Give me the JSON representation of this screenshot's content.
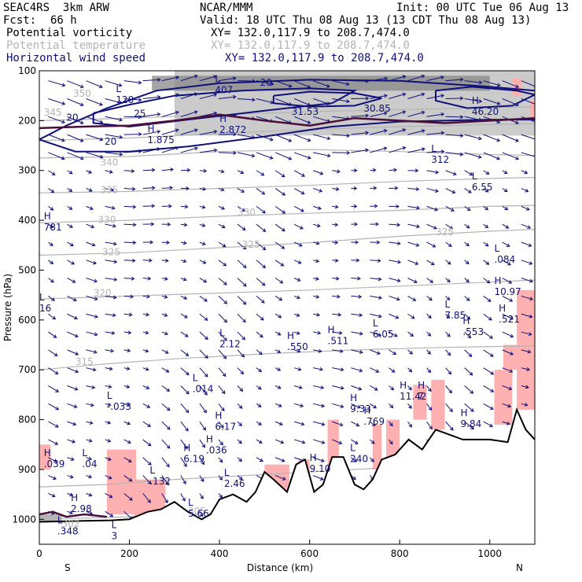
{
  "header": {
    "model": "SEAC4RS  3km ARW",
    "org": "NCAR/MMM",
    "init": "Init: 00 UTC Tue 06 Aug 13",
    "fcst_label": "Fcst:",
    "fcst_value": "66 h",
    "valid": "Valid: 18 UTC Thu 08 Aug 13 (13 CDT Thu 08 Aug 13)",
    "fields": [
      {
        "name": "Potential vorticity",
        "xs": "XY= 132.0,117.9 to 208.7,474.0",
        "color": "#000000"
      },
      {
        "name": "Potential temperature",
        "xs": "XY= 132.0,117.9 to 208.7,474.0",
        "color": "#b4b4b4"
      },
      {
        "name": "Horizontal wind speed",
        "xs": "XY= 132.0,117.9 to 208.7,474.0",
        "color": "#10107a"
      }
    ]
  },
  "chart_data": {
    "type": "cross-section",
    "xlabel": "Distance (km)",
    "ylabel": "Pressure (hPa)",
    "xlim": [
      0,
      1100
    ],
    "ylim": [
      1050,
      100
    ],
    "xticks": [
      0,
      200,
      400,
      600,
      800,
      1000
    ],
    "yticks": [
      100,
      200,
      300,
      400,
      500,
      600,
      700,
      800,
      900,
      1000
    ],
    "end_labels": {
      "left": "S",
      "right": "N"
    },
    "terrain_pressure": [
      [
        0,
        1005
      ],
      [
        100,
        1003
      ],
      [
        160,
        1002
      ],
      [
        200,
        1000
      ],
      [
        240,
        985
      ],
      [
        270,
        980
      ],
      [
        300,
        965
      ],
      [
        330,
        985
      ],
      [
        360,
        1000
      ],
      [
        380,
        990
      ],
      [
        400,
        960
      ],
      [
        430,
        950
      ],
      [
        460,
        965
      ],
      [
        480,
        945
      ],
      [
        500,
        905
      ],
      [
        520,
        920
      ],
      [
        550,
        945
      ],
      [
        570,
        890
      ],
      [
        590,
        880
      ],
      [
        610,
        945
      ],
      [
        630,
        930
      ],
      [
        650,
        875
      ],
      [
        675,
        875
      ],
      [
        700,
        930
      ],
      [
        720,
        940
      ],
      [
        740,
        920
      ],
      [
        760,
        880
      ],
      [
        790,
        870
      ],
      [
        820,
        840
      ],
      [
        850,
        860
      ],
      [
        880,
        820
      ],
      [
        910,
        830
      ],
      [
        940,
        840
      ],
      [
        960,
        840
      ],
      [
        1000,
        840
      ],
      [
        1040,
        845
      ],
      [
        1060,
        780
      ],
      [
        1080,
        820
      ],
      [
        1100,
        840
      ]
    ],
    "theta_contours": [
      {
        "value": 350,
        "p": [
          [
            0,
            200
          ],
          [
            200,
            195
          ],
          [
            400,
            188
          ],
          [
            600,
            182
          ],
          [
            800,
            178
          ],
          [
            1000,
            174
          ],
          [
            1100,
            172
          ]
        ]
      },
      {
        "value": 345,
        "p": [
          [
            0,
            240
          ],
          [
            200,
            235
          ],
          [
            400,
            226
          ],
          [
            600,
            218
          ],
          [
            800,
            212
          ],
          [
            1000,
            208
          ],
          [
            1100,
            206
          ]
        ]
      },
      {
        "value": 340,
        "p": [
          [
            0,
            275
          ],
          [
            200,
            272
          ],
          [
            400,
            262
          ],
          [
            600,
            258
          ],
          [
            800,
            262
          ],
          [
            1000,
            268
          ],
          [
            1100,
            270
          ]
        ]
      },
      {
        "value": 335,
        "p": [
          [
            0,
            345
          ],
          [
            200,
            342
          ],
          [
            400,
            336
          ],
          [
            600,
            330
          ],
          [
            800,
            322
          ],
          [
            1000,
            316
          ],
          [
            1100,
            314
          ]
        ]
      },
      {
        "value": 330,
        "p": [
          [
            0,
            405
          ],
          [
            200,
            400
          ],
          [
            400,
            392
          ],
          [
            600,
            386
          ],
          [
            800,
            380
          ],
          [
            1000,
            372
          ],
          [
            1100,
            370
          ]
        ]
      },
      {
        "value": 325,
        "p": [
          [
            0,
            470
          ],
          [
            200,
            465
          ],
          [
            400,
            455
          ],
          [
            600,
            445
          ],
          [
            800,
            432
          ],
          [
            1000,
            422
          ],
          [
            1100,
            418
          ]
        ]
      },
      {
        "value": 320,
        "p": [
          [
            0,
            558
          ],
          [
            200,
            552
          ],
          [
            400,
            546
          ],
          [
            600,
            540
          ],
          [
            800,
            532
          ],
          [
            1000,
            524
          ],
          [
            1100,
            520
          ]
        ]
      },
      {
        "value": 315,
        "p": [
          [
            0,
            700
          ],
          [
            150,
            688
          ],
          [
            300,
            678
          ],
          [
            500,
            668
          ],
          [
            700,
            660
          ],
          [
            900,
            655
          ],
          [
            1100,
            652
          ]
        ]
      },
      {
        "value": 310,
        "p": [
          [
            0,
            935
          ],
          [
            150,
            930
          ],
          [
            300,
            920
          ],
          [
            500,
            910
          ],
          [
            700,
            900
          ],
          [
            900,
            890
          ],
          [
            1100,
            885
          ]
        ]
      },
      {
        "value": 305,
        "p": [
          [
            0,
            1000
          ],
          [
            200,
            995
          ],
          [
            350,
            990
          ]
        ]
      }
    ],
    "theta_labels": [
      {
        "value": 350,
        "x": 75,
        "p": 152
      },
      {
        "value": 345,
        "x": 10,
        "p": 190
      },
      {
        "value": 340,
        "x": 135,
        "p": 290
      },
      {
        "value": 335,
        "x": 135,
        "p": 345
      },
      {
        "value": 330,
        "x": 130,
        "p": 405
      },
      {
        "value": 330,
        "x": 440,
        "p": 390
      },
      {
        "value": 325,
        "x": 140,
        "p": 470
      },
      {
        "value": 325,
        "x": 450,
        "p": 455
      },
      {
        "value": 325,
        "x": 880,
        "p": 430
      },
      {
        "value": 320,
        "x": 120,
        "p": 552
      },
      {
        "value": 315,
        "x": 80,
        "p": 690
      },
      {
        "value": 302,
        "x": 50,
        "p": 1015
      },
      {
        "value": 305,
        "x": 330,
        "p": 990
      }
    ],
    "wind_speed_contours": [
      {
        "value": 20,
        "p": [
          [
            0,
            238
          ],
          [
            60,
            210
          ],
          [
            150,
            175
          ],
          [
            260,
            140
          ],
          [
            400,
            125
          ],
          [
            600,
            118
          ],
          [
            800,
            120
          ],
          [
            1000,
            132
          ],
          [
            1100,
            140
          ]
        ]
      },
      {
        "value": 20,
        "p": [
          [
            0,
            238
          ],
          [
            80,
            262
          ],
          [
            200,
            262
          ],
          [
            330,
            252
          ],
          [
            500,
            232
          ],
          [
            650,
            212
          ],
          [
            800,
            202
          ],
          [
            1000,
            198
          ],
          [
            1100,
            198
          ]
        ]
      },
      {
        "value": 25,
        "p": [
          [
            120,
            185
          ],
          [
            200,
            168
          ],
          [
            300,
            150
          ],
          [
            450,
            140
          ],
          [
            600,
            135
          ],
          [
            700,
            140
          ],
          [
            650,
            165
          ],
          [
            500,
            180
          ],
          [
            330,
            198
          ],
          [
            200,
            212
          ],
          [
            120,
            205
          ],
          [
            120,
            185
          ]
        ]
      },
      {
        "value": 30,
        "p": [
          [
            520,
            150
          ],
          [
            600,
            142
          ],
          [
            700,
            145
          ],
          [
            760,
            155
          ],
          [
            700,
            170
          ],
          [
            600,
            172
          ],
          [
            520,
            165
          ],
          [
            520,
            150
          ]
        ]
      },
      {
        "value": 25,
        "p": [
          [
            880,
            140
          ],
          [
            960,
            132
          ],
          [
            1060,
            140
          ],
          [
            1100,
            148
          ],
          [
            1050,
            170
          ],
          [
            950,
            175
          ],
          [
            880,
            160
          ],
          [
            880,
            140
          ]
        ]
      }
    ],
    "wind_speed_labels": [
      {
        "value": "20",
        "x": 60,
        "p": 200
      },
      {
        "value": "25",
        "x": 210,
        "p": 192
      },
      {
        "value": "20",
        "x": 145,
        "p": 248
      },
      {
        "value": "30.85",
        "x": 720,
        "p": 182
      },
      {
        "value": "31.53",
        "x": 560,
        "p": 188
      },
      {
        "value": "20",
        "x": 490,
        "p": 130
      }
    ],
    "wind_speed_extrema": [
      {
        "type": "H",
        "value": "1.875",
        "x": 240,
        "p": 245
      },
      {
        "type": "H",
        "value": "2.872",
        "x": 400,
        "p": 225
      },
      {
        "type": "L",
        "value": "120",
        "x": 170,
        "p": 165
      },
      {
        "type": "L",
        "value": "407",
        "x": 390,
        "p": 145
      },
      {
        "type": "H",
        "value": "46.20",
        "x": 960,
        "p": 188
      },
      {
        "type": "L",
        "value": "312",
        "x": 870,
        "p": 285
      },
      {
        "type": "L",
        "value": "6.55",
        "x": 960,
        "p": 340
      },
      {
        "type": "H",
        "value": "781",
        "x": 10,
        "p": 420
      },
      {
        "type": "L",
        "value": ".084",
        "x": 1010,
        "p": 485
      },
      {
        "type": "H",
        "value": "10.97",
        "x": 1010,
        "p": 550
      },
      {
        "type": "L",
        "value": "7.85",
        "x": 900,
        "p": 597
      },
      {
        "type": "H",
        "value": ".521",
        "x": 1020,
        "p": 605
      },
      {
        "type": "L",
        "value": "6.05",
        "x": 740,
        "p": 635
      },
      {
        "type": "H",
        "value": ".553",
        "x": 940,
        "p": 630
      },
      {
        "type": "L",
        "value": "2.12",
        "x": 400,
        "p": 655
      },
      {
        "type": "H",
        "value": ".550",
        "x": 550,
        "p": 660
      },
      {
        "type": "H",
        "value": ".511",
        "x": 640,
        "p": 648
      },
      {
        "type": "L",
        "value": "16",
        "x": 0,
        "p": 583
      },
      {
        "type": "L",
        "value": ".014",
        "x": 340,
        "p": 745
      },
      {
        "type": "H",
        "value": "11.42",
        "x": 800,
        "p": 760
      },
      {
        "type": "H",
        "value": "7",
        "x": 840,
        "p": 760
      },
      {
        "type": "L",
        "value": "-.033",
        "x": 150,
        "p": 780
      },
      {
        "type": "H",
        "value": "9.33",
        "x": 690,
        "p": 785
      },
      {
        "type": "H",
        "value": ".769",
        "x": 720,
        "p": 810
      },
      {
        "type": "H",
        "value": "6.17",
        "x": 390,
        "p": 820
      },
      {
        "type": "H",
        "value": "9.84",
        "x": 935,
        "p": 815
      },
      {
        "type": "H",
        "value": ".036",
        "x": 370,
        "p": 868
      },
      {
        "type": "L",
        "value": ".04",
        "x": 95,
        "p": 895
      },
      {
        "type": "H",
        "value": "6.19",
        "x": 320,
        "p": 885
      },
      {
        "type": "H",
        "value": ".039",
        "x": 10,
        "p": 895
      },
      {
        "type": "L",
        "value": ".132",
        "x": 245,
        "p": 930
      },
      {
        "type": "L",
        "value": "2.46",
        "x": 410,
        "p": 935
      },
      {
        "type": "H",
        "value": "9.10",
        "x": 600,
        "p": 905
      },
      {
        "type": "L",
        "value": "240",
        "x": 690,
        "p": 885
      },
      {
        "type": "H",
        "value": "2.98",
        "x": 70,
        "p": 985
      },
      {
        "type": "L",
        "value": "5.66",
        "x": 330,
        "p": 995
      },
      {
        "type": "L",
        "value": ".348",
        "x": 40,
        "p": 1030
      },
      {
        "type": "L",
        "value": "3",
        "x": 160,
        "p": 1040
      }
    ],
    "pv_highlight_regions": [
      {
        "x": [
          0,
          25
        ],
        "p": [
          850,
          900
        ]
      },
      {
        "x": [
          150,
          215
        ],
        "p": [
          860,
          990
        ]
      },
      {
        "x": [
          210,
          280
        ],
        "p": [
          920,
          1000
        ]
      },
      {
        "x": [
          500,
          555
        ],
        "p": [
          890,
          960
        ]
      },
      {
        "x": [
          575,
          600
        ],
        "p": [
          880,
          950
        ]
      },
      {
        "x": [
          640,
          665
        ],
        "p": [
          800,
          930
        ]
      },
      {
        "x": [
          740,
          760
        ],
        "p": [
          810,
          900
        ]
      },
      {
        "x": [
          770,
          800
        ],
        "p": [
          800,
          880
        ]
      },
      {
        "x": [
          830,
          860
        ],
        "p": [
          730,
          800
        ]
      },
      {
        "x": [
          870,
          900
        ],
        "p": [
          720,
          820
        ]
      },
      {
        "x": [
          1010,
          1050
        ],
        "p": [
          700,
          810
        ]
      },
      {
        "x": [
          1060,
          1100
        ],
        "p": [
          540,
          780
        ]
      },
      {
        "x": [
          1030,
          1060
        ],
        "p": [
          650,
          700
        ]
      },
      {
        "x": [
          1090,
          1100
        ],
        "p": [
          160,
          200
        ]
      },
      {
        "x": [
          1050,
          1070
        ],
        "p": [
          115,
          150
        ]
      }
    ],
    "pv_shading_regions": [
      {
        "x": [
          300,
          1100
        ],
        "p": [
          100,
          230
        ],
        "intensity": 0.35
      },
      {
        "x": [
          250,
          1000
        ],
        "p": [
          110,
          140
        ],
        "intensity": 0.6
      },
      {
        "x": [
          0,
          50
        ],
        "p": [
          990,
          1050
        ],
        "intensity": 0.5
      }
    ],
    "colors": {
      "theta": "#b4b4b4",
      "wind": "#10107a",
      "pv": "#4a0f3a",
      "pv_highlight": "#ffb0b0",
      "terrain": "#000000"
    }
  }
}
